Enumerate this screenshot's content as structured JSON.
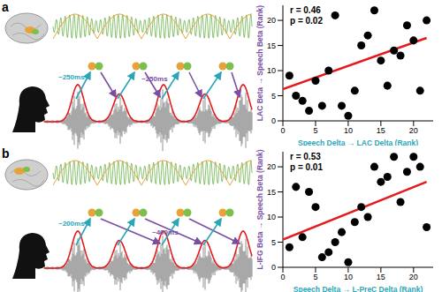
{
  "chart_data": [
    {
      "type": "scatter",
      "panel_label": "a",
      "delays": [
        "~250ms",
        "~250ms"
      ],
      "stats": [
        "r = 0.46",
        "p = 0.02"
      ],
      "x_label": "Speech Delta → LAC Delta (Rank)",
      "y_label": "LAC Beta → Speech Beta (Rank)",
      "xlim": [
        0,
        23
      ],
      "ylim": [
        0,
        23
      ],
      "xticks": [
        0,
        5,
        10,
        15,
        20
      ],
      "yticks": [
        0,
        5,
        10,
        15,
        20
      ],
      "series": [
        {
          "type": "scatter",
          "color": "#000000",
          "x": [
            1,
            2,
            3,
            4,
            5,
            6,
            7,
            8,
            9,
            10,
            11,
            12,
            13,
            14,
            15,
            16,
            17,
            18,
            19,
            20,
            21,
            22
          ],
          "values": [
            9,
            5,
            4,
            2,
            8,
            3,
            10,
            21,
            3,
            1,
            6,
            15,
            17,
            22,
            12,
            7,
            14,
            13,
            19,
            16,
            6,
            20
          ]
        },
        {
          "type": "line",
          "color": "#e41a1c",
          "x": [
            0,
            22
          ],
          "values": [
            6.3,
            16.5
          ]
        }
      ]
    },
    {
      "type": "scatter",
      "panel_label": "b",
      "delays": [
        "~200ms",
        "~400ms"
      ],
      "stats": [
        "r = 0.53",
        "p = 0.01"
      ],
      "x_label": "Speech Delta → L-PreC Delta (Rank)",
      "y_label": "L-IFG Beta → Speech Beta (Rank)",
      "xlim": [
        0,
        23
      ],
      "ylim": [
        0,
        23
      ],
      "xticks": [
        0,
        5,
        10,
        15,
        20
      ],
      "yticks": [
        0,
        5,
        10,
        15,
        20
      ],
      "series": [
        {
          "type": "scatter",
          "color": "#000000",
          "x": [
            1,
            2,
            3,
            4,
            5,
            6,
            7,
            8,
            9,
            10,
            11,
            12,
            13,
            14,
            15,
            16,
            17,
            18,
            19,
            20,
            21,
            22
          ],
          "values": [
            4,
            16,
            6,
            15,
            12,
            2,
            3,
            5,
            7,
            1,
            9,
            12,
            10,
            20,
            17,
            18,
            22,
            13,
            19,
            22,
            20,
            8
          ]
        },
        {
          "type": "line",
          "color": "#e41a1c",
          "x": [
            0,
            22
          ],
          "values": [
            5.5,
            17
          ]
        }
      ]
    }
  ]
}
